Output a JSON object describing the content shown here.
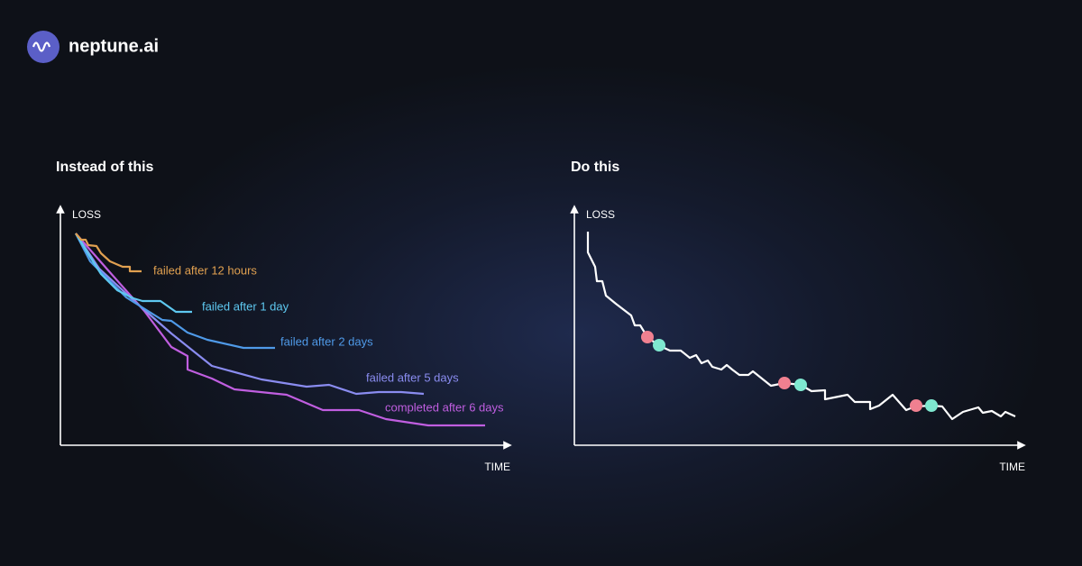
{
  "header": {
    "brand": "neptune.ai"
  },
  "panels": [
    {
      "title": "Instead of this",
      "y_axis": "LOSS",
      "x_axis": "TIME",
      "runs": [
        {
          "label": "failed after 12 hours"
        },
        {
          "label": "failed after 1 day"
        },
        {
          "label": "failed after 2 days"
        },
        {
          "label": "failed after 5 days"
        },
        {
          "label": "completed after 6 days"
        }
      ]
    },
    {
      "title": "Do this",
      "y_axis": "LOSS",
      "x_axis": "TIME"
    }
  ]
}
